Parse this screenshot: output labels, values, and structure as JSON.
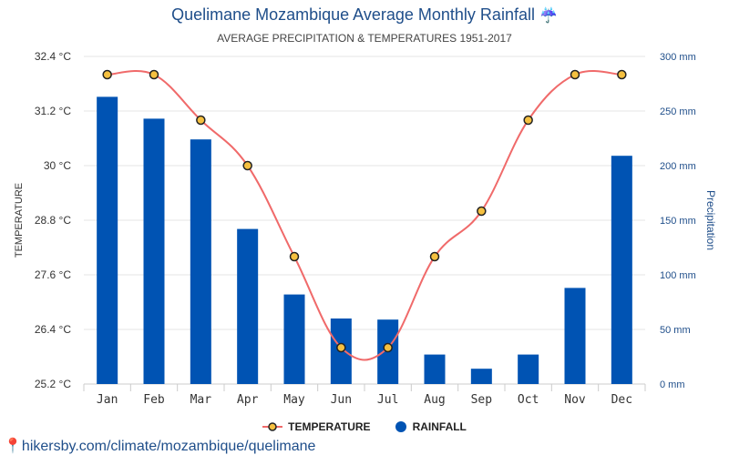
{
  "chart_data": {
    "type": "bar",
    "title": "Quelimane Mozambique Average Monthly Rainfall",
    "subtitle": "AVERAGE PRECIPITATION & TEMPERATURES 1951-2017",
    "categories": [
      "Jan",
      "Feb",
      "Mar",
      "Apr",
      "May",
      "Jun",
      "Jul",
      "Aug",
      "Sep",
      "Oct",
      "Nov",
      "Dec"
    ],
    "series": [
      {
        "name": "TEMPERATURE",
        "type": "line",
        "axis": "left",
        "unit": "°C",
        "color": "#f06a6a",
        "marker_fill": "#f5c040",
        "values": [
          32,
          32,
          31,
          30,
          28,
          26,
          26,
          28,
          29,
          31,
          32,
          32
        ]
      },
      {
        "name": "RAINFALL",
        "type": "bar",
        "axis": "right",
        "unit": "mm",
        "color": "#0053b3",
        "values": [
          263,
          243,
          224,
          142,
          82,
          60,
          59,
          27,
          14,
          27,
          88,
          209
        ]
      }
    ],
    "ylabel_left": "TEMPERATURE",
    "ylabel_right": "Precipitation",
    "ylim_left": [
      25.2,
      32.4
    ],
    "ylim_right": [
      0,
      300
    ],
    "left_ticks": [
      "25.2 °C",
      "26.4 °C",
      "27.6 °C",
      "28.8 °C",
      "30 °C",
      "31.2 °C",
      "32.4 °C"
    ],
    "right_ticks": [
      "0 mm",
      "50 mm",
      "100 mm",
      "150 mm",
      "200 mm",
      "250 mm",
      "300 mm"
    ],
    "grid": true,
    "legend_position": "bottom-center"
  },
  "footer": "hikersby.com/climate/mozambique/quelimane",
  "umbrella_icon": "☔"
}
